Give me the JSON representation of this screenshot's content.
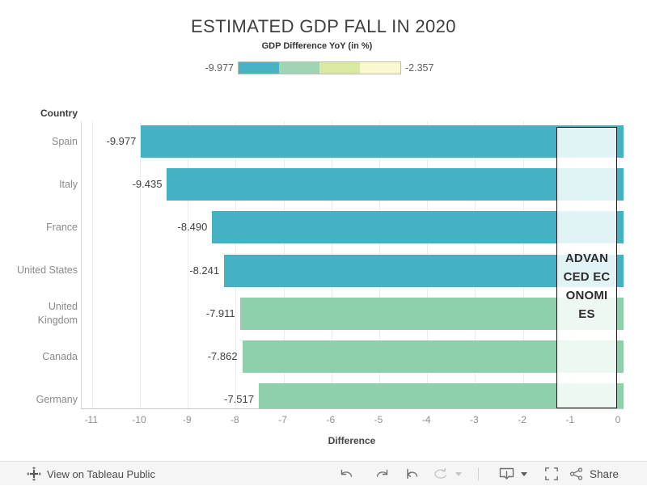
{
  "title": "ESTIMATED GDP FALL IN 2020",
  "legend": {
    "title": "GDP Difference YoY (in %)",
    "min_label": "-9.977",
    "max_label": "-2.357",
    "colors": [
      "#49b3c3",
      "#9fd5b4",
      "#d9e9a4",
      "#f8f9d0"
    ]
  },
  "chart_data": {
    "type": "bar",
    "orientation": "horizontal",
    "row_header": "Country",
    "categories": [
      "Spain",
      "Italy",
      "France",
      "United States",
      "United Kingdom",
      "Canada",
      "Germany"
    ],
    "values": [
      -9.977,
      -9.435,
      -8.49,
      -8.241,
      -7.911,
      -7.862,
      -7.517
    ],
    "labels": [
      "-9.977",
      "-9.435",
      "-8.490",
      "-8.241",
      "-7.911",
      "-7.862",
      "-7.517"
    ],
    "bar_colors": [
      "#45b2c3",
      "#45b2c3",
      "#45b2c3",
      "#45b2c3",
      "#8ed0ab",
      "#8ed0ab",
      "#8ed0ab"
    ],
    "xlabel": "Difference",
    "x_ticks": [
      "-11",
      "-10",
      "-9",
      "-8",
      "-7",
      "-6",
      "-5",
      "-4",
      "-3",
      "-2",
      "-1",
      "0"
    ],
    "xlim": [
      -11.25,
      0.1
    ],
    "grid": "vertical",
    "legend_position": "top",
    "annotation": "ADVANCED ECONOMIES"
  },
  "annotation": {
    "text": "ADVANCED ECONOMIES",
    "lines": [
      "ADVAN",
      "CED EC",
      "ONOMI",
      "ES"
    ]
  },
  "toolbar": {
    "view_label": "View on Tableau Public",
    "share_label": "Share",
    "icons": [
      "tableau-logo",
      "undo",
      "redo",
      "reset",
      "refresh",
      "download",
      "fullscreen",
      "share"
    ]
  }
}
